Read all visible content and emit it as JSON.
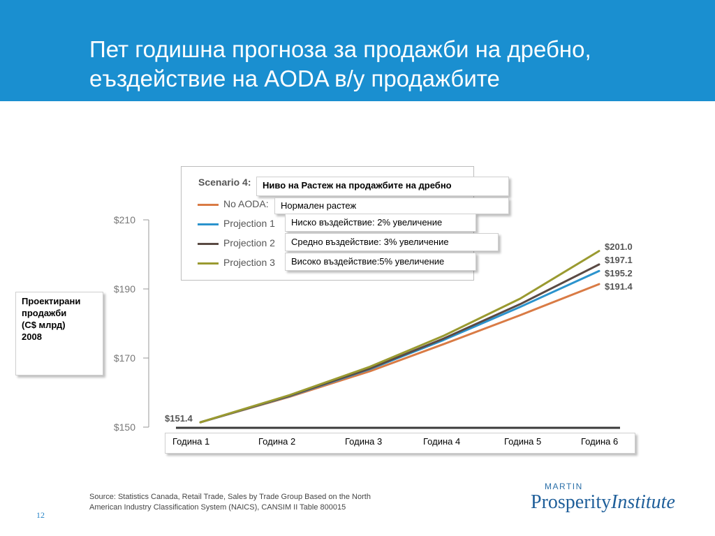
{
  "slide": {
    "title_line1": "Пет годишна прогноза за продажби на дребно,",
    "title_line2": "еъздействие на AODA в/у продажбите",
    "page_number": "12",
    "source_line1": "Source: Statistics Canada, Retail Trade, Sales by Trade Group Based on the North",
    "source_line2": "American Industry Classification System (NAICS), CANSIM II Table 800015",
    "logo_top": "MARTIN",
    "logo_main": "Prosperity",
    "logo_italic": "Institute",
    "header_color": "#1a8fd0"
  },
  "ylabel_box": {
    "line1": "Проектирани",
    "line2": "продажби",
    "line3": "(C$ млрд)",
    "line4": "2008"
  },
  "legend": {
    "scenario_title": "Scenario 4:",
    "entries": [
      "No AODA:",
      "Projection 1",
      "Projection 2",
      "Projection 3"
    ],
    "overlay_title": "Ниво на Растеж на продажбите на дребно",
    "overlay_entries": [
      "Нормален растеж",
      "Ниско въздействие: 2% увеличение",
      "Средно въздействие: 3% увеличение",
      "Високо въздействие:5% увеличение"
    ]
  },
  "chart_data": {
    "type": "line",
    "categories": [
      "Година 1",
      "Година 2",
      "Година 3",
      "Година 4",
      "Година 5",
      "Година 6"
    ],
    "yticks": [
      "$150",
      "$170",
      "$190",
      "$210"
    ],
    "ylim": [
      150,
      210
    ],
    "start_label": "$151.4",
    "series": [
      {
        "name": "No AODA:",
        "color": "#d97b45",
        "values": [
          151.4,
          158.8,
          166.2,
          174.0,
          182.4,
          191.4
        ],
        "end_label": "$191.4"
      },
      {
        "name": "Projection 1",
        "color": "#2b93cd",
        "values": [
          151.4,
          159.0,
          166.8,
          175.2,
          184.8,
          195.2
        ],
        "end_label": "$195.2"
      },
      {
        "name": "Projection 2",
        "color": "#5a4a44",
        "values": [
          151.4,
          159.1,
          167.0,
          175.6,
          185.6,
          197.1
        ],
        "end_label": "$197.1"
      },
      {
        "name": "Projection 3",
        "color": "#9a9a30",
        "values": [
          151.4,
          159.3,
          167.5,
          176.4,
          187.2,
          201.0
        ],
        "end_label": "$201.0"
      }
    ]
  }
}
